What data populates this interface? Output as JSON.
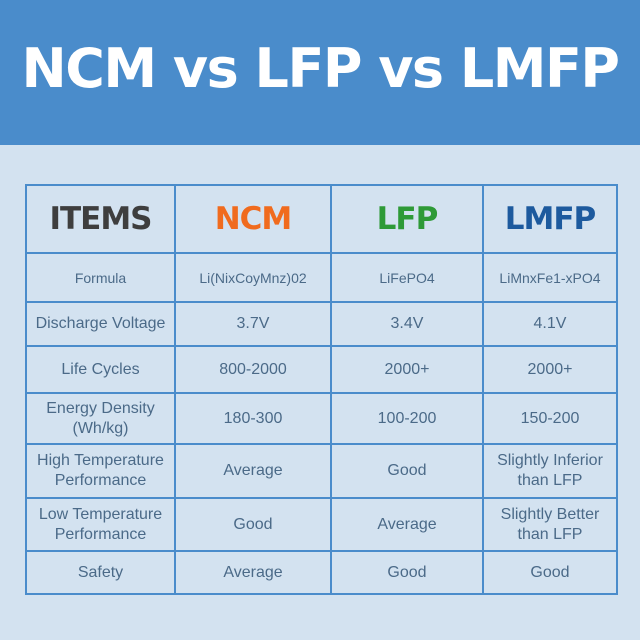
{
  "title": "NCM vs LFP vs LMFP",
  "colors": {
    "header_bg": "#4a8ccb",
    "page_bg": "#d3e2f0",
    "border": "#4a8ccb",
    "items": "#3e3e3e",
    "ncm": "#f06b1e",
    "lfp": "#2e9a37",
    "lmfp": "#1d5a9e",
    "cell_text": "#4b6a88"
  },
  "table": {
    "headers": [
      "ITEMS",
      "NCM",
      "LFP",
      "LMFP"
    ],
    "rows": [
      [
        "Formula",
        "Li(NixCoyMnz)02",
        "LiFePO4",
        "LiMnxFe1-xPO4"
      ],
      [
        "Discharge Voltage",
        "3.7V",
        "3.4V",
        "4.1V"
      ],
      [
        "Life Cycles",
        "800-2000",
        "2000+",
        "2000+"
      ],
      [
        "Energy Density\n(Wh/kg)",
        "180-300",
        "100-200",
        "150-200"
      ],
      [
        "High Temperature\nPerformance",
        "Average",
        "Good",
        "Slightly Inferior\nthan LFP"
      ],
      [
        "Low Temperature\nPerformance",
        "Good",
        "Average",
        "Slightly Better\nthan LFP"
      ],
      [
        "Safety",
        "Average",
        "Good",
        "Good"
      ]
    ]
  }
}
